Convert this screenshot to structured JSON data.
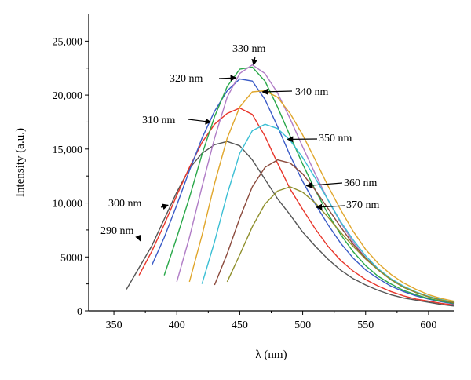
{
  "chart_data": {
    "type": "line",
    "title": "",
    "xlabel": "λ (nm)",
    "ylabel": "Intensity (a.u.)",
    "xlim": [
      330,
      620
    ],
    "ylim": [
      0,
      27500
    ],
    "xticks": [
      350,
      400,
      450,
      500,
      550,
      600
    ],
    "xtick_labels": [
      "350",
      "400",
      "450",
      "500",
      "550",
      "600"
    ],
    "yticks": [
      0,
      5000,
      10000,
      15000,
      20000,
      25000
    ],
    "ytick_labels": [
      "0",
      "5000",
      "10,000",
      "15,000",
      "20,000",
      "25,000"
    ],
    "grid": false,
    "legend": "none",
    "series": [
      {
        "name": "290 nm",
        "color": "#555555",
        "x": [
          360,
          370,
          380,
          390,
          400,
          410,
          420,
          430,
          440,
          450,
          460,
          470,
          480,
          490,
          500,
          510,
          520,
          530,
          540,
          550,
          560,
          570,
          580,
          590,
          600,
          610,
          620
        ],
        "values": [
          2000,
          4000,
          6000,
          8500,
          11000,
          13200,
          14600,
          15400,
          15700,
          15300,
          14000,
          12200,
          10400,
          8900,
          7300,
          6000,
          4800,
          3800,
          3000,
          2400,
          1900,
          1500,
          1200,
          1000,
          800,
          600,
          450
        ]
      },
      {
        "name": "300 nm",
        "color": "#e8352a",
        "x": [
          370,
          380,
          390,
          400,
          410,
          420,
          430,
          440,
          450,
          460,
          470,
          480,
          490,
          500,
          510,
          520,
          530,
          540,
          550,
          560,
          570,
          580,
          590,
          600,
          610,
          620
        ],
        "values": [
          3300,
          5500,
          8000,
          10700,
          13300,
          15600,
          17300,
          18300,
          18800,
          18200,
          16200,
          13700,
          11300,
          9400,
          7600,
          6000,
          4700,
          3700,
          2900,
          2300,
          1800,
          1400,
          1100,
          900,
          700,
          550
        ]
      },
      {
        "name": "310 nm",
        "color": "#3a5bc7",
        "x": [
          380,
          390,
          400,
          410,
          420,
          430,
          440,
          450,
          460,
          470,
          480,
          490,
          500,
          510,
          520,
          530,
          540,
          550,
          560,
          570,
          580,
          590,
          600,
          610,
          620
        ],
        "values": [
          4200,
          6800,
          9800,
          13000,
          16000,
          18500,
          20400,
          21500,
          21300,
          19600,
          17100,
          14400,
          12000,
          9900,
          8000,
          6300,
          4900,
          3800,
          3000,
          2300,
          1800,
          1400,
          1100,
          850,
          650
        ]
      },
      {
        "name": "320 nm",
        "color": "#2aa84a",
        "x": [
          390,
          400,
          410,
          420,
          430,
          440,
          450,
          460,
          470,
          480,
          490,
          500,
          510,
          520,
          530,
          540,
          550,
          560,
          570,
          580,
          590,
          600,
          610,
          620
        ],
        "values": [
          3300,
          6800,
          10500,
          14500,
          18000,
          20800,
          22400,
          22600,
          21300,
          18900,
          16200,
          13600,
          11200,
          9000,
          7100,
          5500,
          4200,
          3200,
          2500,
          1900,
          1500,
          1150,
          900,
          700
        ]
      },
      {
        "name": "330 nm",
        "color": "#b07cc6",
        "x": [
          400,
          410,
          420,
          430,
          440,
          450,
          460,
          470,
          480,
          490,
          500,
          510,
          520,
          530,
          540,
          550,
          560,
          570,
          580,
          590,
          600,
          610,
          620
        ],
        "values": [
          2700,
          6800,
          11500,
          16000,
          19800,
          22000,
          22800,
          22000,
          20200,
          17800,
          15200,
          12700,
          10300,
          8200,
          6400,
          4900,
          3800,
          2900,
          2200,
          1700,
          1300,
          1000,
          750
        ]
      },
      {
        "name": "340 nm",
        "color": "#e0a62b",
        "x": [
          410,
          420,
          430,
          440,
          450,
          460,
          470,
          480,
          490,
          500,
          510,
          520,
          530,
          540,
          550,
          560,
          570,
          580,
          590,
          600,
          610,
          620
        ],
        "values": [
          2700,
          7000,
          11800,
          16000,
          18900,
          20300,
          20400,
          19800,
          18300,
          16300,
          14000,
          11600,
          9400,
          7400,
          5700,
          4400,
          3400,
          2600,
          2000,
          1500,
          1150,
          900
        ]
      },
      {
        "name": "350 nm",
        "color": "#3bbfd4",
        "x": [
          420,
          430,
          440,
          450,
          460,
          470,
          480,
          490,
          500,
          510,
          520,
          530,
          540,
          550,
          560,
          570,
          580,
          590,
          600,
          610,
          620
        ],
        "values": [
          2500,
          6400,
          10800,
          14600,
          16700,
          17300,
          16900,
          15800,
          14200,
          12300,
          10300,
          8300,
          6600,
          5100,
          3900,
          3000,
          2300,
          1750,
          1350,
          1050,
          800
        ]
      },
      {
        "name": "360 nm",
        "color": "#8b4a3c",
        "x": [
          430,
          440,
          450,
          460,
          470,
          480,
          490,
          500,
          510,
          520,
          530,
          540,
          550,
          560,
          570,
          580,
          590,
          600,
          610,
          620
        ],
        "values": [
          2400,
          5300,
          8600,
          11500,
          13300,
          14000,
          13700,
          12700,
          11200,
          9500,
          7800,
          6200,
          4900,
          3800,
          2900,
          2200,
          1700,
          1300,
          1000,
          750
        ]
      },
      {
        "name": "370 nm",
        "color": "#8f8f2c",
        "x": [
          440,
          450,
          460,
          470,
          480,
          490,
          500,
          510,
          520,
          530,
          540,
          550,
          560,
          570,
          580,
          590,
          600,
          610,
          620
        ],
        "values": [
          2700,
          5200,
          7800,
          9900,
          11100,
          11500,
          11000,
          10000,
          8700,
          7300,
          6000,
          4800,
          3800,
          2900,
          2200,
          1700,
          1300,
          1000,
          800
        ]
      }
    ],
    "annotations": [
      {
        "text": "290 nm",
        "x": 371,
        "y": 6500
      },
      {
        "text": "300 nm",
        "x": 393,
        "y": 9800
      },
      {
        "text": "310 nm",
        "x": 427,
        "y": 17500
      },
      {
        "text": "320 nm",
        "x": 447,
        "y": 21600
      },
      {
        "text": "330 nm",
        "x": 461,
        "y": 22800
      },
      {
        "text": "340 nm",
        "x": 468,
        "y": 20300
      },
      {
        "text": "350 nm",
        "x": 488,
        "y": 15900
      },
      {
        "text": "360 nm",
        "x": 503,
        "y": 11600
      },
      {
        "text": "370 nm",
        "x": 511,
        "y": 9600
      }
    ]
  }
}
